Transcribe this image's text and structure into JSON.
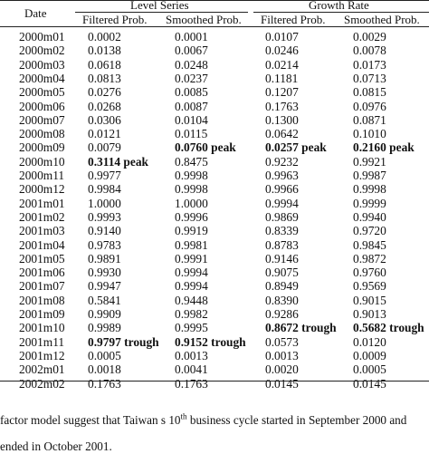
{
  "table": {
    "headers": {
      "date": "Date",
      "level_series": "Level Series",
      "growth_rate": "Growth Rate",
      "filtered_1": "Filtered Prob.",
      "smoothed_1": "Smoothed Prob.",
      "filtered_2": "Filtered Prob.",
      "smoothed_2": "Smoothed Prob."
    },
    "rows": [
      {
        "date": "2000m01",
        "lf": "0.0002",
        "ls": "0.0001",
        "gf": "0.0107",
        "gs": "0.0029"
      },
      {
        "date": "2000m02",
        "lf": "0.0138",
        "ls": "0.0067",
        "gf": "0.0246",
        "gs": "0.0078"
      },
      {
        "date": "2000m03",
        "lf": "0.0618",
        "ls": "0.0248",
        "gf": "0.0214",
        "gs": "0.0173"
      },
      {
        "date": "2000m04",
        "lf": "0.0813",
        "ls": "0.0237",
        "gf": "0.1181",
        "gs": "0.0713"
      },
      {
        "date": "2000m05",
        "lf": "0.0276",
        "ls": "0.0085",
        "gf": "0.1207",
        "gs": "0.0815"
      },
      {
        "date": "2000m06",
        "lf": "0.0268",
        "ls": "0.0087",
        "gf": "0.1763",
        "gs": "0.0976"
      },
      {
        "date": "2000m07",
        "lf": "0.0306",
        "ls": "0.0104",
        "gf": "0.1300",
        "gs": "0.0871"
      },
      {
        "date": "2000m08",
        "lf": "0.0121",
        "ls": "0.0115",
        "gf": "0.0642",
        "gs": "0.1010"
      },
      {
        "date": "2000m09",
        "lf": "0.0079",
        "ls": "0.0760 peak",
        "gf": "0.0257 peak",
        "gs": "0.2160 peak"
      },
      {
        "date": "2000m10",
        "lf": "0.3114 peak",
        "ls": "0.8475",
        "gf": "0.9232",
        "gs": "0.9921"
      },
      {
        "date": "2000m11",
        "lf": "0.9977",
        "ls": "0.9998",
        "gf": "0.9963",
        "gs": "0.9987"
      },
      {
        "date": "2000m12",
        "lf": "0.9984",
        "ls": "0.9998",
        "gf": "0.9966",
        "gs": "0.9998"
      },
      {
        "date": "2001m01",
        "lf": "1.0000",
        "ls": "1.0000",
        "gf": "0.9994",
        "gs": "0.9999"
      },
      {
        "date": "2001m02",
        "lf": "0.9993",
        "ls": "0.9996",
        "gf": "0.9869",
        "gs": "0.9940"
      },
      {
        "date": "2001m03",
        "lf": "0.9140",
        "ls": "0.9919",
        "gf": "0.8339",
        "gs": "0.9720"
      },
      {
        "date": "2001m04",
        "lf": "0.9783",
        "ls": "0.9981",
        "gf": "0.8783",
        "gs": "0.9845"
      },
      {
        "date": "2001m05",
        "lf": "0.9891",
        "ls": "0.9991",
        "gf": "0.9146",
        "gs": "0.9872"
      },
      {
        "date": "2001m06",
        "lf": "0.9930",
        "ls": "0.9994",
        "gf": "0.9075",
        "gs": "0.9760"
      },
      {
        "date": "2001m07",
        "lf": "0.9947",
        "ls": "0.9994",
        "gf": "0.8949",
        "gs": "0.9569"
      },
      {
        "date": "2001m08",
        "lf": "0.5841",
        "ls": "0.9448",
        "gf": "0.8390",
        "gs": "0.9015"
      },
      {
        "date": "2001m09",
        "lf": "0.9909",
        "ls": "0.9982",
        "gf": "0.9286",
        "gs": "0.9013"
      },
      {
        "date": "2001m10",
        "lf": "0.9989",
        "ls": "0.9995",
        "gf": "0.8672 trough",
        "gs": "0.5682 trough"
      },
      {
        "date": "2001m11",
        "lf": "0.9797 trough",
        "ls": "0.9152 trough",
        "gf": "0.0573",
        "gs": "0.0120"
      },
      {
        "date": "2001m12",
        "lf": "0.0005",
        "ls": "0.0013",
        "gf": "0.0013",
        "gs": "0.0009"
      },
      {
        "date": "2002m01",
        "lf": "0.0018",
        "ls": "0.0041",
        "gf": "0.0020",
        "gs": "0.0005"
      },
      {
        "date": "2002m02",
        "lf": "0.1763",
        "ls": "0.1763",
        "gf": "0.0145",
        "gs": "0.0145"
      }
    ],
    "bold_cells": [
      [
        "2000m09",
        "ls"
      ],
      [
        "2000m09",
        "gf"
      ],
      [
        "2000m09",
        "gs"
      ],
      [
        "2000m10",
        "lf"
      ],
      [
        "2001m10",
        "gf"
      ],
      [
        "2001m10",
        "gs"
      ],
      [
        "2001m11",
        "lf"
      ],
      [
        "2001m11",
        "ls"
      ]
    ]
  },
  "footnote": {
    "line1_before": "factor model suggest that Taiwan s 10",
    "line1_sup": "th",
    "line1_after": " business cycle started in September 2000 and",
    "line2": "ended in October 2001."
  }
}
